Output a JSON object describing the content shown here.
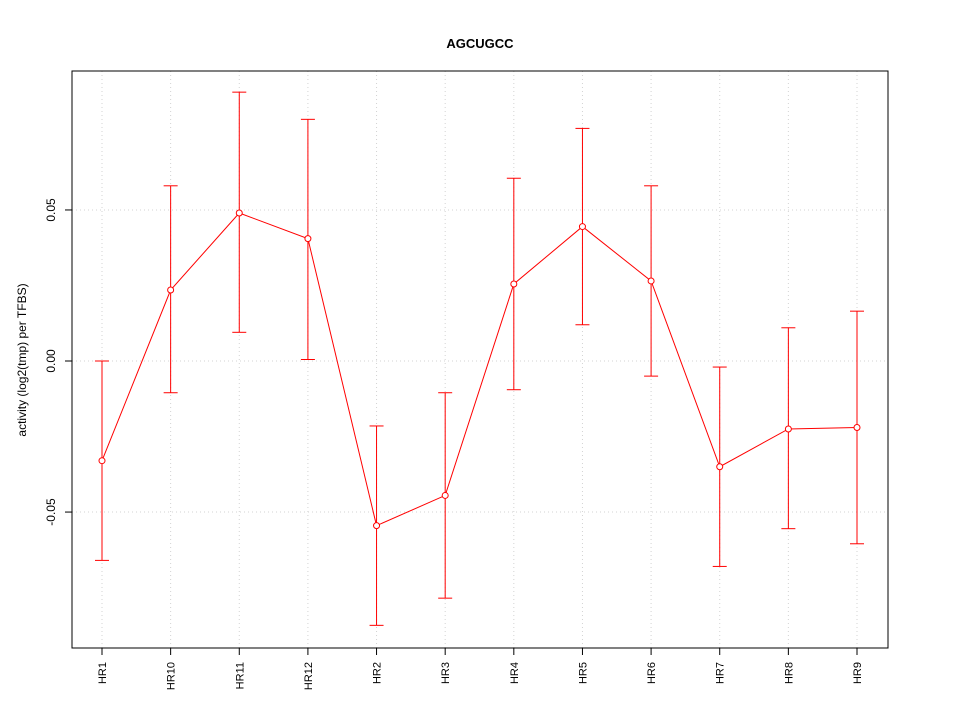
{
  "chart_data": {
    "type": "line",
    "title": "AGCUGCC",
    "xlabel": "",
    "ylabel": "activity (log2(tmp) per TFBS)",
    "categories": [
      "HR1",
      "HR10",
      "HR11",
      "HR12",
      "HR2",
      "HR3",
      "HR4",
      "HR5",
      "HR6",
      "HR7",
      "HR8",
      "HR9"
    ],
    "series": [
      {
        "values": [
          -0.033,
          0.0235,
          0.049,
          0.0405,
          -0.0545,
          -0.0445,
          0.0255,
          0.0445,
          0.0265,
          -0.035,
          -0.0225,
          -0.022
        ],
        "upper": [
          0.0,
          0.058,
          0.089,
          0.08,
          -0.0215,
          -0.0105,
          0.0605,
          0.077,
          0.058,
          -0.002,
          0.011,
          0.0165
        ],
        "lower": [
          -0.066,
          -0.0105,
          0.0095,
          0.0005,
          -0.0875,
          -0.0785,
          -0.0095,
          0.012,
          -0.005,
          -0.068,
          -0.0555,
          -0.0605
        ],
        "color": "#ff0000"
      }
    ],
    "ylim": [
      -0.095,
      0.096
    ],
    "yticks": [
      -0.05,
      0.0,
      0.05
    ],
    "ytick_labels": [
      "-0.05",
      "0.00",
      "0.05"
    ],
    "grid": true,
    "grid_color": "#d3d3d3",
    "legend": "none"
  }
}
